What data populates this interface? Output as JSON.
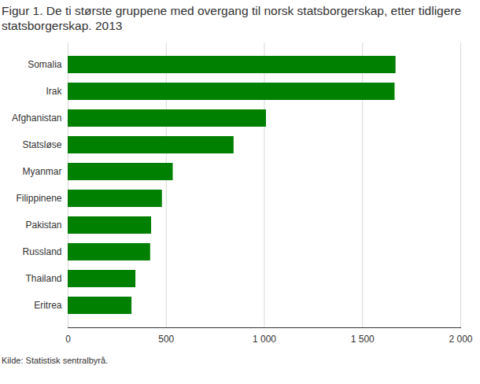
{
  "chart_data": {
    "type": "bar",
    "orientation": "horizontal",
    "title": "Figur 1. De ti største gruppene med overgang til norsk statsborgerskap, etter tidligere statsborgerskap. 2013",
    "source": "Kilde: Statistisk sentralbyrå.",
    "categories": [
      "Somalia",
      "Irak",
      "Afghanistan",
      "Statsløse",
      "Myanmar",
      "Filippinene",
      "Pakistan",
      "Russland",
      "Thailand",
      "Eritrea"
    ],
    "values": [
      1670,
      1665,
      1010,
      845,
      535,
      480,
      425,
      420,
      345,
      325
    ],
    "color": "#008000",
    "xlim": [
      0,
      2000
    ],
    "xticks": [
      0,
      500,
      {
        "value": 1000,
        "label": "1 000"
      },
      {
        "value": 1500,
        "label": "1 500"
      },
      {
        "value": 2000,
        "label": "2 000"
      }
    ],
    "grid": true
  }
}
